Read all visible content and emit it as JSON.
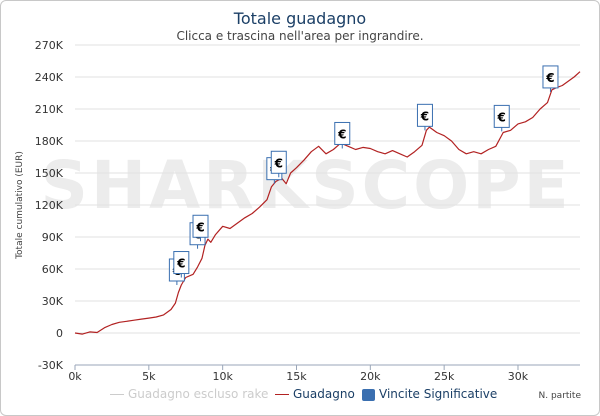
{
  "header": {
    "title": "Totale guadagno",
    "subtitle": "Clicca e trascina nell'area per ingrandire."
  },
  "watermark": "SHARKSCOPE",
  "colors": {
    "guadagno": "#b22222",
    "escluso_rake": "#cccccc",
    "vincite": "#3a6fb0",
    "marker_fill": "#ffffff",
    "marker_border": "#3a6fb0",
    "title": "#1b3f66",
    "grid": "#e2e2e2",
    "watermark": "#ececec"
  },
  "legend": {
    "items": [
      {
        "label": "Guadagno escluso rake",
        "kind": "line",
        "muted": true
      },
      {
        "label": "Guadagno",
        "kind": "line",
        "muted": false
      },
      {
        "label": "Vincite Significative",
        "kind": "box",
        "muted": false
      }
    ]
  },
  "chart_data": {
    "type": "line",
    "title": "Totale guadagno",
    "subtitle": "Clicca e trascina nell'area per ingrandire.",
    "xlabel": "N. partite",
    "ylabel": "Totale cumulativo (EUR)",
    "xlim": [
      0,
      34200
    ],
    "ylim": [
      -30000,
      270000
    ],
    "x_ticks": [
      0,
      5000,
      10000,
      15000,
      20000,
      25000,
      30000
    ],
    "x_tick_labels": [
      "0k",
      "5k",
      "10k",
      "15k",
      "20k",
      "25k",
      "30k"
    ],
    "y_ticks": [
      -30000,
      0,
      30000,
      60000,
      90000,
      120000,
      150000,
      180000,
      210000,
      240000,
      270000
    ],
    "y_tick_labels": [
      "-30K",
      "0",
      "30K",
      "60K",
      "90K",
      "120K",
      "150K",
      "180K",
      "210K",
      "240K",
      "270K"
    ],
    "grid": true,
    "legend_position": "bottom",
    "series": [
      {
        "name": "Guadagno",
        "x": [
          0,
          500,
          1000,
          1500,
          2000,
          2500,
          3000,
          3500,
          4000,
          4500,
          5000,
          5500,
          6000,
          6500,
          6800,
          7000,
          7200,
          7500,
          8000,
          8300,
          8600,
          8800,
          9000,
          9200,
          9500,
          10000,
          10500,
          11000,
          11500,
          12000,
          12500,
          13000,
          13300,
          13600,
          14000,
          14300,
          14600,
          15000,
          15500,
          16000,
          16500,
          17000,
          17500,
          18000,
          18500,
          19000,
          19500,
          20000,
          20500,
          21000,
          21500,
          22000,
          22500,
          23000,
          23500,
          23800,
          24000,
          24500,
          25000,
          25500,
          26000,
          26500,
          27000,
          27500,
          28000,
          28500,
          29000,
          29500,
          30000,
          30500,
          31000,
          31500,
          32000,
          32300,
          32600,
          33000,
          33400,
          33800,
          34200
        ],
        "y": [
          0,
          -1000,
          1000,
          500,
          5000,
          8000,
          10000,
          11000,
          12000,
          13000,
          14000,
          15000,
          17000,
          22000,
          28000,
          38000,
          45000,
          52000,
          55000,
          62000,
          70000,
          82000,
          88000,
          85000,
          92000,
          100000,
          98000,
          103000,
          108000,
          112000,
          118000,
          125000,
          137000,
          142000,
          145000,
          140000,
          150000,
          155000,
          162000,
          170000,
          175000,
          168000,
          172000,
          178000,
          175000,
          172000,
          174000,
          173000,
          170000,
          168000,
          171000,
          168000,
          165000,
          170000,
          176000,
          190000,
          193000,
          188000,
          185000,
          180000,
          172000,
          168000,
          170000,
          168000,
          172000,
          175000,
          188000,
          190000,
          196000,
          198000,
          202000,
          210000,
          216000,
          228000,
          230000,
          232000,
          236000,
          240000,
          245000
        ]
      },
      {
        "name": "Vincite Significative",
        "x": [
          6900,
          7200,
          8300,
          8500,
          13500,
          13800,
          18100,
          23700,
          28900,
          32200
        ],
        "y": [
          45000,
          52000,
          79000,
          86000,
          140000,
          146000,
          173000,
          190000,
          189000,
          226000
        ]
      }
    ]
  }
}
